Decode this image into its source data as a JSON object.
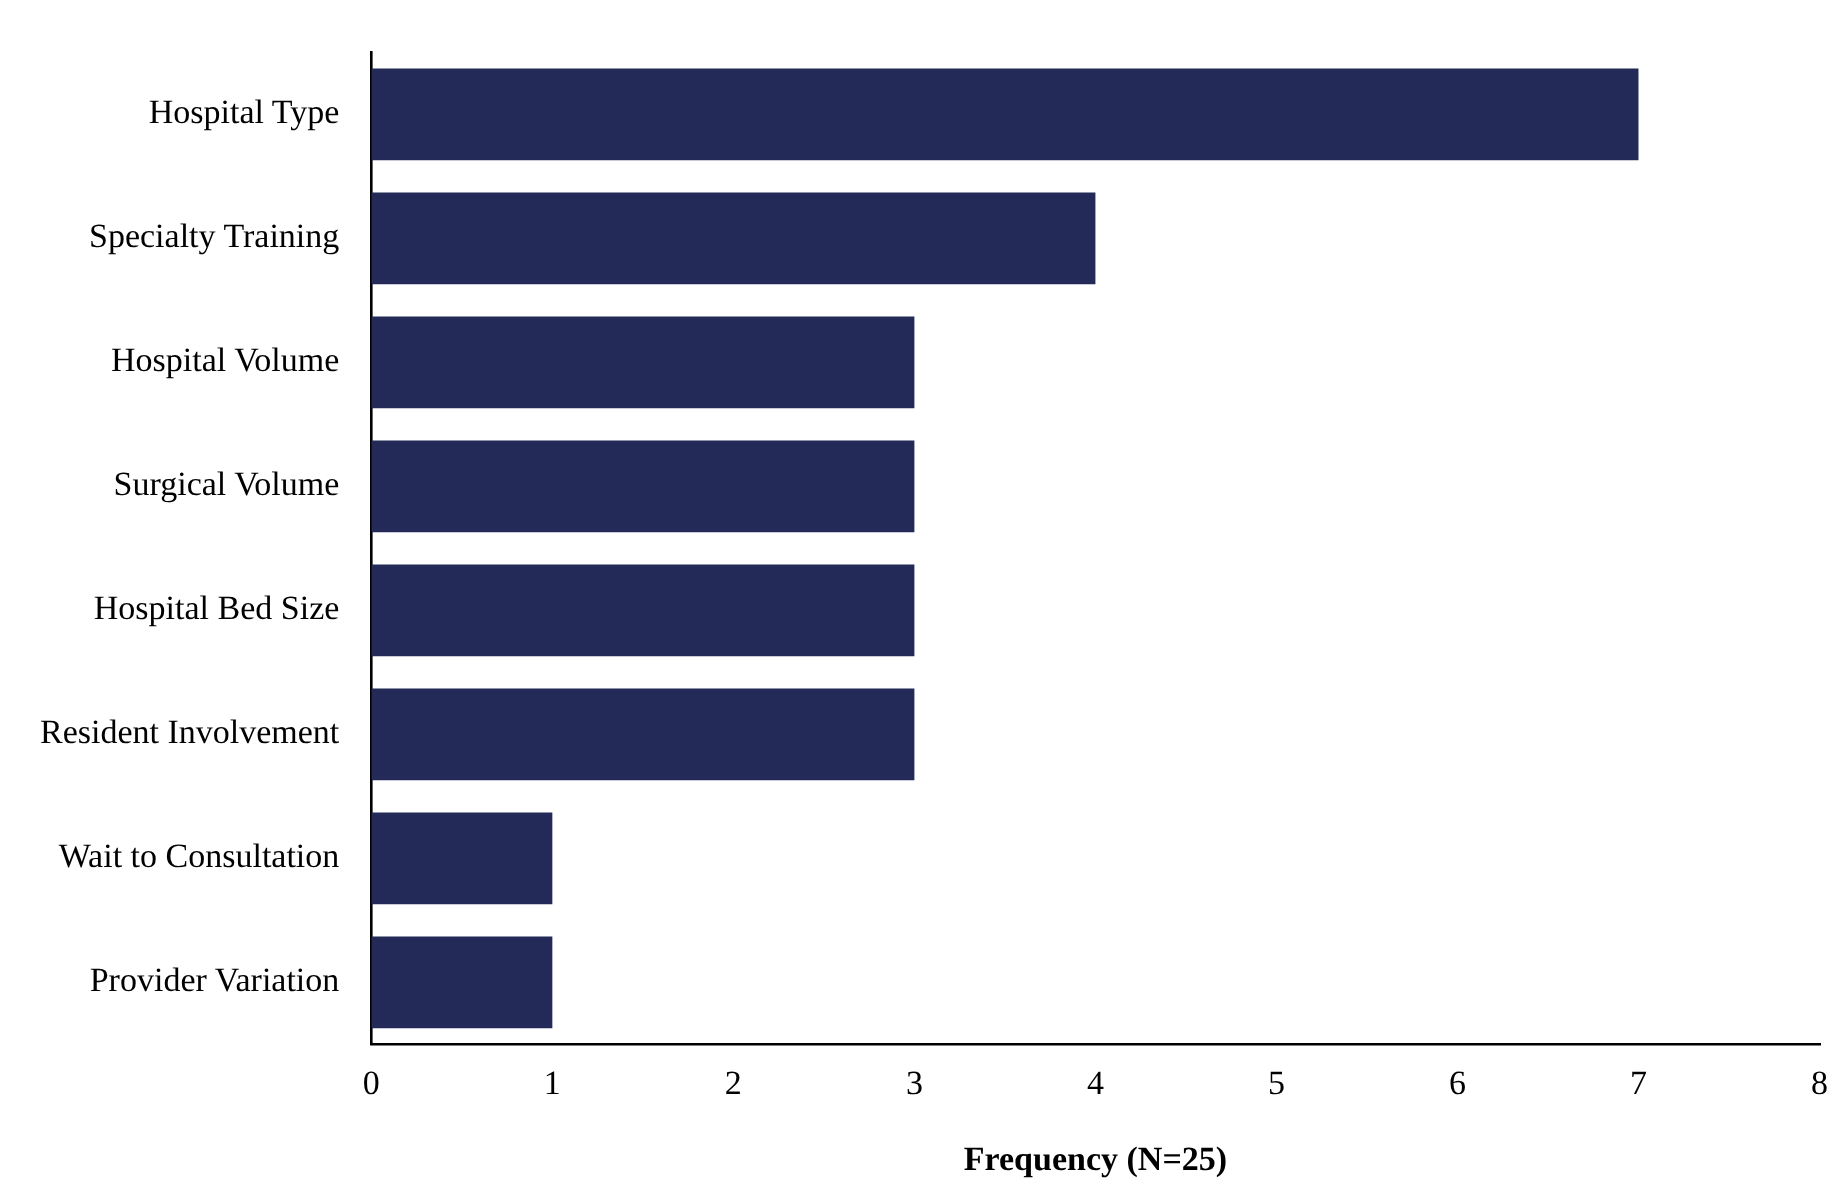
{
  "chart_data": {
    "type": "bar",
    "orientation": "horizontal",
    "xlabel": "Frequency (N=25)",
    "categories": [
      "Hospital Type",
      "Specialty Training",
      "Hospital Volume",
      "Surgical Volume",
      "Hospital Bed Size",
      "Resident Involvement",
      "Wait to Consultation",
      "Provider Variation"
    ],
    "values": [
      7,
      4,
      3,
      3,
      3,
      3,
      1,
      1
    ],
    "color": "#232a57",
    "xlim": [
      0,
      8
    ],
    "xticks": [
      0,
      1,
      2,
      3,
      4,
      5,
      6,
      7,
      8
    ],
    "grid": false,
    "legend": false
  }
}
